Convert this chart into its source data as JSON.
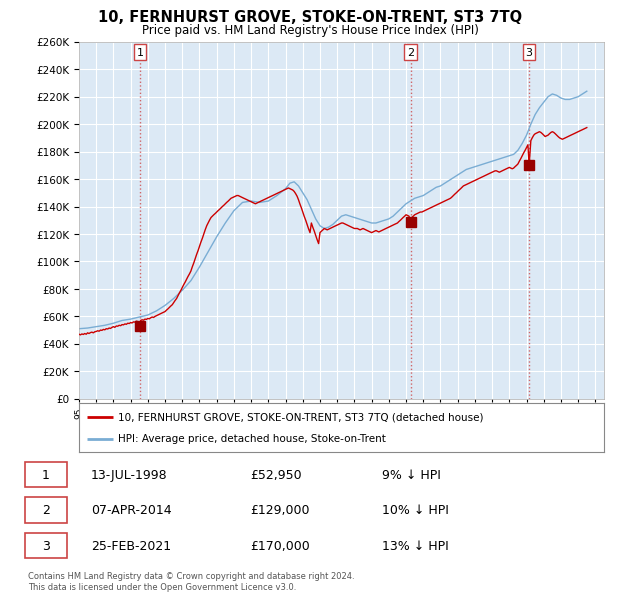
{
  "title": "10, FERNHURST GROVE, STOKE-ON-TRENT, ST3 7TQ",
  "subtitle": "Price paid vs. HM Land Registry's House Price Index (HPI)",
  "background_color": "#ffffff",
  "plot_bg_color": "#dce9f5",
  "grid_color": "#ffffff",
  "ylim": [
    0,
    260000
  ],
  "yticks": [
    0,
    20000,
    40000,
    60000,
    80000,
    100000,
    120000,
    140000,
    160000,
    180000,
    200000,
    220000,
    240000,
    260000
  ],
  "xlim_start": 1995.0,
  "xlim_end": 2025.5,
  "red_line_color": "#cc0000",
  "blue_line_color": "#7aadd4",
  "marker_color": "#990000",
  "transaction_dates": [
    1998.54,
    2014.27,
    2021.15
  ],
  "transaction_prices": [
    52950,
    129000,
    170000
  ],
  "transaction_labels": [
    "1",
    "2",
    "3"
  ],
  "legend_entries": [
    "10, FERNHURST GROVE, STOKE-ON-TRENT, ST3 7TQ (detached house)",
    "HPI: Average price, detached house, Stoke-on-Trent"
  ],
  "table_data": [
    [
      "1",
      "13-JUL-1998",
      "£52,950",
      "9% ↓ HPI"
    ],
    [
      "2",
      "07-APR-2014",
      "£129,000",
      "10% ↓ HPI"
    ],
    [
      "3",
      "25-FEB-2021",
      "£170,000",
      "13% ↓ HPI"
    ]
  ],
  "footer_text": "Contains HM Land Registry data © Crown copyright and database right 2024.\nThis data is licensed under the Open Government Licence v3.0."
}
